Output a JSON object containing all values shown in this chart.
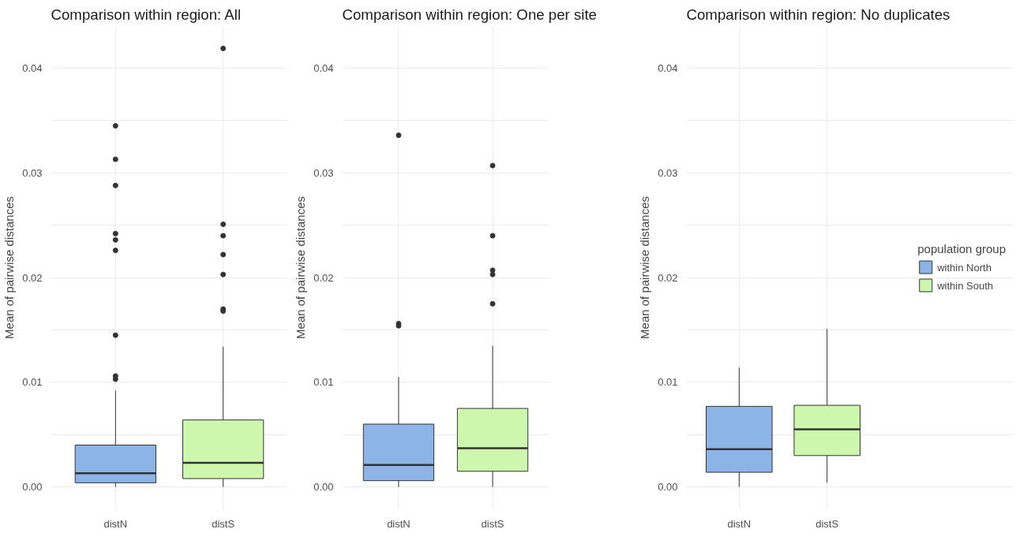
{
  "chart_data": [
    {
      "type": "box",
      "title": "Comparison within region: All",
      "ylabel": "Mean of pairwise distances",
      "categories": [
        "distN",
        "distS"
      ],
      "ylim": [
        -0.0021,
        0.044
      ],
      "yticks": [
        {
          "value": 0.0,
          "label": "0.00"
        },
        {
          "value": 0.005,
          "label": null
        },
        {
          "value": 0.01,
          "label": "0.01"
        },
        {
          "value": 0.015,
          "label": null
        },
        {
          "value": 0.02,
          "label": "0.02"
        },
        {
          "value": 0.025,
          "label": null
        },
        {
          "value": 0.03,
          "label": "0.03"
        },
        {
          "value": 0.035,
          "label": null
        },
        {
          "value": 0.04,
          "label": "0.04"
        }
      ],
      "grid": true,
      "series": [
        {
          "color": "#8cb4e6",
          "boxes": [
            {
              "low": 0.0,
              "q1": 0.0004,
              "median": 0.0013,
              "q3": 0.004,
              "high": 0.0092,
              "outliers": [
                0.0345,
                0.0313,
                0.0288,
                0.0242,
                0.0236,
                0.0226,
                0.0145,
                0.0106,
                0.0103
              ]
            },
            null
          ]
        },
        {
          "color": "#ccf7ad",
          "boxes": [
            null,
            {
              "low": 0.0,
              "q1": 0.0008,
              "median": 0.0023,
              "q3": 0.0064,
              "high": 0.0134,
              "outliers": [
                0.0419,
                0.0251,
                0.024,
                0.0222,
                0.0203,
                0.017,
                0.0168
              ]
            }
          ]
        }
      ]
    },
    {
      "type": "box",
      "title": "Comparison within region: One per site",
      "ylabel": "Mean of pairwise distances",
      "categories": [
        "distN",
        "distS"
      ],
      "ylim": [
        -0.0021,
        0.044
      ],
      "yticks": [
        {
          "value": 0.0,
          "label": "0.00"
        },
        {
          "value": 0.005,
          "label": null
        },
        {
          "value": 0.01,
          "label": "0.01"
        },
        {
          "value": 0.015,
          "label": null
        },
        {
          "value": 0.02,
          "label": "0.02"
        },
        {
          "value": 0.025,
          "label": null
        },
        {
          "value": 0.03,
          "label": "0.03"
        },
        {
          "value": 0.035,
          "label": null
        },
        {
          "value": 0.04,
          "label": "0.04"
        }
      ],
      "grid": true,
      "series": [
        {
          "color": "#8cb4e6",
          "boxes": [
            {
              "low": 0.0,
              "q1": 0.0006,
              "median": 0.0021,
              "q3": 0.006,
              "high": 0.0105,
              "outliers": [
                0.0336,
                0.0156,
                0.0154
              ]
            },
            null
          ]
        },
        {
          "color": "#ccf7ad",
          "boxes": [
            null,
            {
              "low": 0.0,
              "q1": 0.0015,
              "median": 0.0037,
              "q3": 0.0075,
              "high": 0.0135,
              "outliers": [
                0.0307,
                0.024,
                0.0207,
                0.0203,
                0.0175
              ]
            }
          ]
        }
      ]
    },
    {
      "type": "box",
      "title": "Comparison within region: No duplicates",
      "ylabel": "Mean of pairwise distances",
      "categories": [
        "distN",
        "distS"
      ],
      "ylim": [
        -0.0021,
        0.044
      ],
      "yticks": [
        {
          "value": 0.0,
          "label": "0.00"
        },
        {
          "value": 0.005,
          "label": null
        },
        {
          "value": 0.01,
          "label": "0.01"
        },
        {
          "value": 0.015,
          "label": null
        },
        {
          "value": 0.02,
          "label": "0.02"
        },
        {
          "value": 0.025,
          "label": null
        },
        {
          "value": 0.03,
          "label": "0.03"
        },
        {
          "value": 0.035,
          "label": null
        },
        {
          "value": 0.04,
          "label": "0.04"
        }
      ],
      "grid": true,
      "legend": "right",
      "legend_title": "population group",
      "series": [
        {
          "name": "within North",
          "color": "#8cb4e6",
          "boxes": [
            {
              "low": 0.0,
              "q1": 0.0014,
              "median": 0.0036,
              "q3": 0.0077,
              "high": 0.0114
            },
            null
          ]
        },
        {
          "name": "within South",
          "color": "#ccf7ad",
          "boxes": [
            null,
            {
              "low": 0.0004,
              "q1": 0.003,
              "median": 0.0055,
              "q3": 0.0078,
              "high": 0.0151
            }
          ]
        }
      ]
    }
  ]
}
